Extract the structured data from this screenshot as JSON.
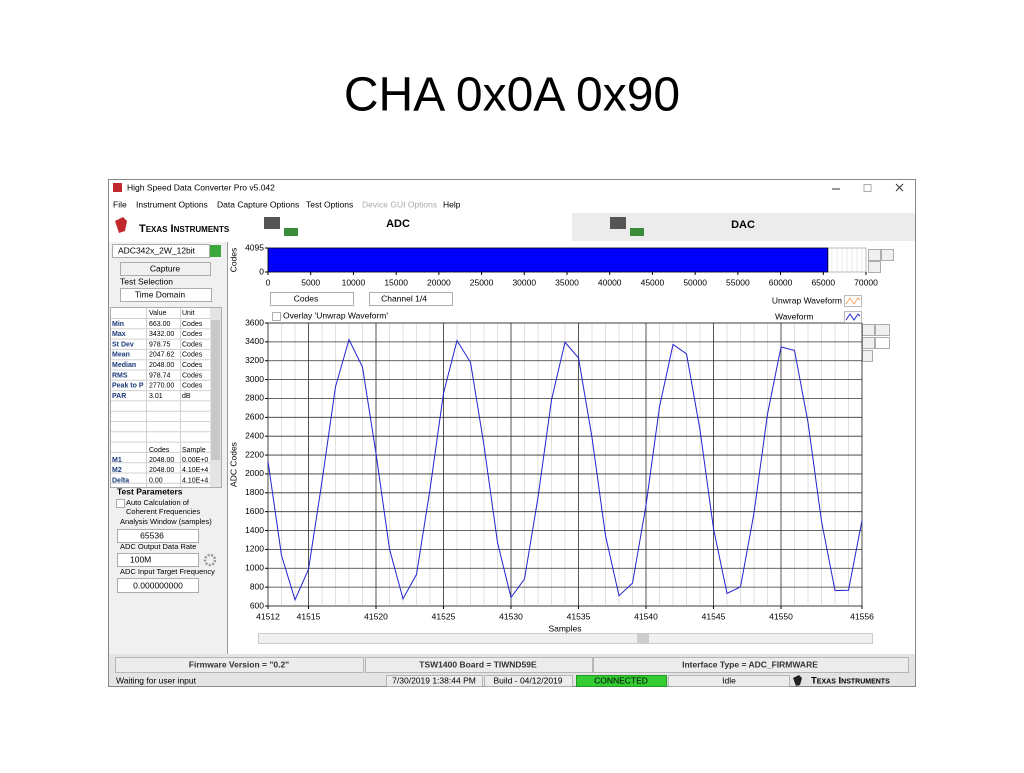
{
  "slide_title": "CHA 0x0A 0x90",
  "window": {
    "title": "High Speed Data Converter Pro v5.042",
    "menu": [
      "File",
      "Instrument Options",
      "Data Capture Options",
      "Test Options",
      "Device GUI Options",
      "Help"
    ]
  },
  "logo": "Texas Instruments",
  "tabs": [
    "ADC",
    "DAC"
  ],
  "device": "ADC342x_2W_12bit",
  "capture": "Capture",
  "test_selection": {
    "label": "Test Selection",
    "value": "Time Domain"
  },
  "stats": {
    "header": [
      "Value",
      "Unit"
    ],
    "rows": [
      [
        "Min",
        "663.00",
        "Codes"
      ],
      [
        "Max",
        "3432.00",
        "Codes"
      ],
      [
        "St Dev",
        "978.75",
        "Codes"
      ],
      [
        "Mean",
        "2047.62",
        "Codes"
      ],
      [
        "Median",
        "2048.00",
        "Codes"
      ],
      [
        "RMS",
        "978.74",
        "Codes"
      ],
      [
        "Peak to P",
        "2770.00",
        "Codes"
      ],
      [
        "PAR",
        "3.01",
        "dB"
      ]
    ]
  },
  "markers": {
    "header": [
      "Codes",
      "Sample"
    ],
    "rows": [
      [
        "M1",
        "2048.00",
        "0.00E+0"
      ],
      [
        "M2",
        "2048.00",
        "4.10E+4"
      ],
      [
        "Delta",
        "0.00",
        "4.10E+4"
      ]
    ]
  },
  "test_parameters": {
    "title": "Test Parameters",
    "auto_calc": [
      "Auto Calculation of",
      "Coherent Frequencies"
    ],
    "analysis_window_label": "Analysis Window (samples)",
    "analysis_window": "65536",
    "data_rate_label": "ADC Output Data Rate",
    "data_rate": "100M",
    "target_freq_label": "ADC Input Target Frequency",
    "target_freq": "0.000000000"
  },
  "status": {
    "firmware": "Firmware Version = \"0.2\"",
    "board": "TSW1400 Board = TIWND59E",
    "interface": "Interface Type = ADC_FIRMWARE",
    "message": "Waiting for user input",
    "datetime": "7/30/2019 1:38:44 PM",
    "build": "Build  - 04/12/2019",
    "connection": "CONNECTED",
    "state": "Idle",
    "logo": "Texas Instruments"
  },
  "chart_data": [
    {
      "type": "area",
      "ylabel": "Codes",
      "x": [
        0,
        65536
      ],
      "values": [
        4095,
        4095
      ],
      "color": "#0000ff",
      "xlim": [
        0,
        70000
      ],
      "xticks": [
        0,
        5000,
        10000,
        15000,
        20000,
        25000,
        30000,
        35000,
        40000,
        45000,
        50000,
        55000,
        60000,
        65000,
        70000
      ],
      "ylim": [
        0,
        4095
      ],
      "yticks": [
        0,
        4095
      ]
    },
    {
      "type": "line",
      "ylabel": "ADC Codes",
      "xlabel": "Samples",
      "units_select": "Codes",
      "channel_select": "Channel 1/4",
      "overlay_checkbox": "Overlay 'Unwrap Waveform'",
      "overlay_legend": {
        "name": "Unwrap Waveform",
        "color": "#f4a460"
      },
      "x": [
        41512,
        41513,
        41514,
        41515,
        41516,
        41517,
        41518,
        41519,
        41520,
        41521,
        41522,
        41523,
        41524,
        41525,
        41526,
        41527,
        41528,
        41529,
        41530,
        41531,
        41532,
        41533,
        41534,
        41535,
        41536,
        41537,
        41538,
        41539,
        41540,
        41541,
        41542,
        41543,
        41544,
        41545,
        41546,
        41547,
        41548,
        41549,
        41550,
        41551,
        41552,
        41553,
        41554,
        41555,
        41556
      ],
      "series": [
        {
          "name": "Waveform",
          "color": "#2323d0",
          "values": [
            2132,
            1137,
            666,
            989,
            1920,
            2924,
            3424,
            3133,
            2218,
            1204,
            676,
            935,
            1835,
            2856,
            3413,
            3184,
            2302,
            1274,
            690,
            886,
            1751,
            2785,
            3396,
            3230,
            2385,
            1346,
            709,
            842,
            1668,
            2710,
            3372,
            3273,
            2467,
            1421,
            734,
            802,
            1586,
            2634,
            3346,
            3310,
            2547,
            1499,
            763,
            767,
            1507
          ]
        }
      ],
      "xlim": [
        41512,
        41556
      ],
      "xticks": [
        41512,
        41515,
        41520,
        41525,
        41530,
        41535,
        41540,
        41545,
        41550,
        41556
      ],
      "ylim": [
        600,
        3600
      ],
      "yticks": [
        600,
        800,
        1000,
        1200,
        1400,
        1600,
        1800,
        2000,
        2200,
        2400,
        2600,
        2800,
        3000,
        3200,
        3400,
        3600
      ],
      "grid": true
    }
  ]
}
